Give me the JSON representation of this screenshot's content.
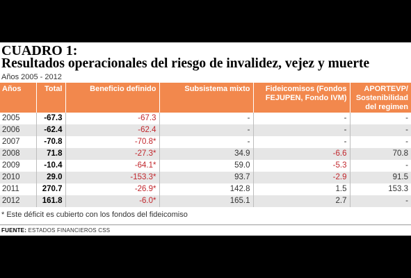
{
  "title": {
    "line1": "CUADRO 1:",
    "line2": "Resultados operacionales del riesgo de invalidez, vejez y muerte",
    "subtitle": "Años 2005 - 2012"
  },
  "table": {
    "headers": {
      "years": "Años",
      "total": "Total",
      "beneficio": "Beneficio definido",
      "subsistema": "Subsistema mixto",
      "fideicomisos": "Fideicomisos (Fondos FEJUPEN, Fondo IVM)",
      "aportevp": "APORTEVP/ Sostenibilidad del regimen"
    },
    "rows": [
      {
        "year": "2005",
        "total": "-67.3",
        "beneficio": "-67.3",
        "subsistema": "-",
        "fideicomisos": "-",
        "aportevp": "-"
      },
      {
        "year": "2006",
        "total": "-62.4",
        "beneficio": "-62.4",
        "subsistema": "-",
        "fideicomisos": "-",
        "aportevp": "-"
      },
      {
        "year": "2007",
        "total": "-70.8",
        "beneficio": "-70.8*",
        "subsistema": "-",
        "fideicomisos": "-",
        "aportevp": "-"
      },
      {
        "year": "2008",
        "total": "71.8",
        "beneficio": "-27.3*",
        "subsistema": "34.9",
        "fideicomisos": "-6.6",
        "aportevp": "70.8"
      },
      {
        "year": "2009",
        "total": "-10.4",
        "beneficio": "-64.1*",
        "subsistema": "59.0",
        "fideicomisos": "-5.3",
        "aportevp": "-"
      },
      {
        "year": "2010",
        "total": "29.0",
        "beneficio": "-153.3*",
        "subsistema": "93.7",
        "fideicomisos": "-2.9",
        "aportevp": "91.5"
      },
      {
        "year": "2011",
        "total": "270.7",
        "beneficio": "-26.9*",
        "subsistema": "142.8",
        "fideicomisos": "1.5",
        "aportevp": "153.3"
      },
      {
        "year": "2012",
        "total": "161.8",
        "beneficio": "-6.0*",
        "subsistema": "165.1",
        "fideicomisos": "2.7",
        "aportevp": "-"
      }
    ]
  },
  "footnote": "* Este déficit es cubierto con los fondos del fideicomiso",
  "source": {
    "label": "FUENTE:",
    "text": " ESTADOS FINANCIEROS CSS"
  },
  "colors": {
    "header_bg": "#f2884d",
    "negative": "#c1272d",
    "stripe": "#e6e6e6"
  }
}
